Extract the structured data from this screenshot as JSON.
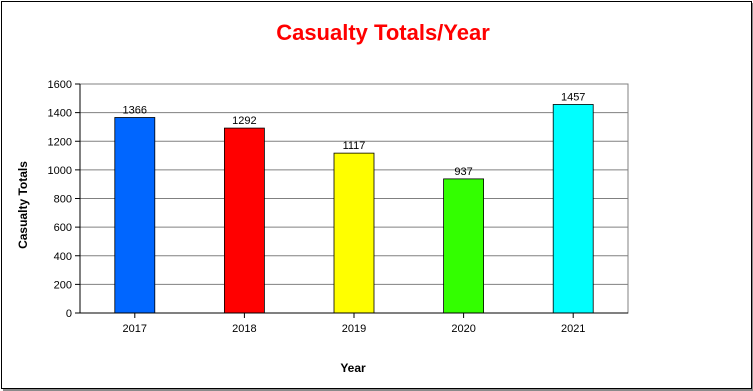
{
  "chart_data": {
    "type": "bar",
    "title": "Casualty Totals/Year",
    "title_color": "#ff0000",
    "xlabel": "Year",
    "ylabel": "Casualty Totals",
    "categories": [
      "2017",
      "2018",
      "2019",
      "2020",
      "2021"
    ],
    "values": [
      1366,
      1292,
      1117,
      937,
      1457
    ],
    "bar_colors": [
      "#0066ff",
      "#ff0000",
      "#ffff00",
      "#33ff00",
      "#00ffff"
    ],
    "ylim": [
      0,
      1600
    ],
    "yticks": [
      0,
      200,
      400,
      600,
      800,
      1000,
      1200,
      1400,
      1600
    ],
    "grid": true,
    "legend": "none"
  }
}
